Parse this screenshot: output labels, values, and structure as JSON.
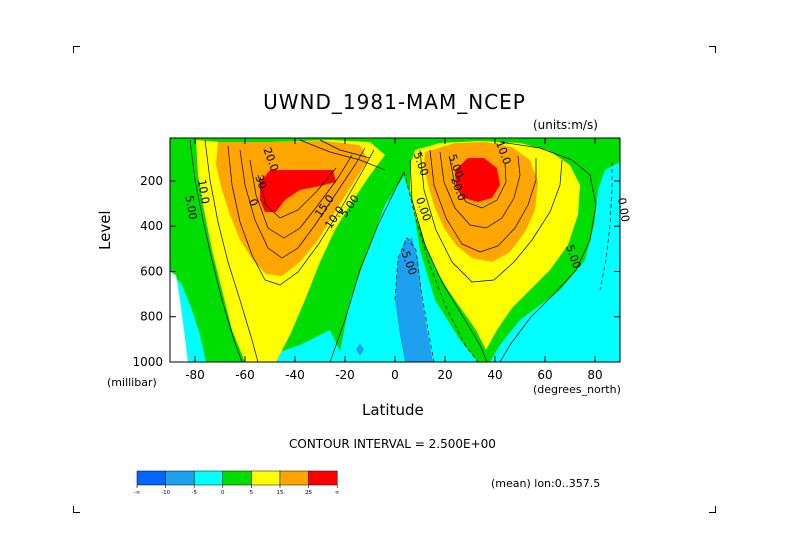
{
  "chart_data": {
    "type": "heatmap",
    "subtype": "filled-contour",
    "title": "UWND_1981-MAM_NCEP",
    "units_label": "(units:m/s)",
    "xlabel": "Latitude",
    "x_units_label": "(degrees_north)",
    "ylabel": "Level",
    "y_units_label": "(millibar)",
    "xlim": [
      -90,
      90
    ],
    "ylim": [
      1000,
      10
    ],
    "y_reversed": true,
    "x_ticks": [
      -80,
      -60,
      -40,
      -20,
      0,
      20,
      40,
      60,
      80
    ],
    "x_tick_labels": [
      "-80",
      "-60",
      "-40",
      "-20",
      "0",
      "20",
      "40",
      "60",
      "80"
    ],
    "y_ticks": [
      200,
      400,
      600,
      800,
      1000
    ],
    "y_tick_labels": [
      "200",
      "400",
      "600",
      "800",
      "1000"
    ],
    "contour_interval_text": "CONTOUR INTERVAL = 2.500E+00",
    "footer_text": "(mean) lon:0..357.5",
    "colorbar": {
      "boundaries": [
        "-∞",
        "-10",
        "-5",
        "0",
        "5",
        "15",
        "25",
        "∞"
      ],
      "colors": [
        "#0066ff",
        "#1ea0f0",
        "#00ffff",
        "#00dd00",
        "#ffff00",
        "#ffa500",
        "#ff0000"
      ]
    },
    "contour_labels": [
      {
        "text": "20.0",
        "lat": -51,
        "level": 110
      },
      {
        "text": "10.0",
        "lat": -78,
        "level": 250
      },
      {
        "text": "5.00",
        "lat": -83,
        "level": 320
      },
      {
        "text": "30",
        "lat": -55,
        "level": 210
      },
      {
        "text": "0",
        "lat": -58,
        "level": 300
      },
      {
        "text": "15.0",
        "lat": -27,
        "level": 320
      },
      {
        "text": "10.0",
        "lat": -23,
        "level": 370
      },
      {
        "text": "5.00",
        "lat": -17,
        "level": 320
      },
      {
        "text": "5.00",
        "lat": 9,
        "level": 130
      },
      {
        "text": "5.00",
        "lat": 23,
        "level": 140
      },
      {
        "text": "10.0",
        "lat": 42,
        "level": 80
      },
      {
        "text": "20.0",
        "lat": 24,
        "level": 240
      },
      {
        "text": "0.00",
        "lat": 10,
        "level": 330
      },
      {
        "text": "-5.00",
        "lat": 4,
        "level": 560
      },
      {
        "text": "5.00",
        "lat": 70,
        "level": 540
      },
      {
        "text": "0.00",
        "lat": 90,
        "level": 330
      }
    ],
    "jets": [
      {
        "name": "",
        "lat_center": -45,
        "core_level": 220,
        "max_value": 30
      },
      {
        "name": "",
        "lat_center": 32,
        "core_level": 200,
        "max_value": 30
      }
    ]
  }
}
